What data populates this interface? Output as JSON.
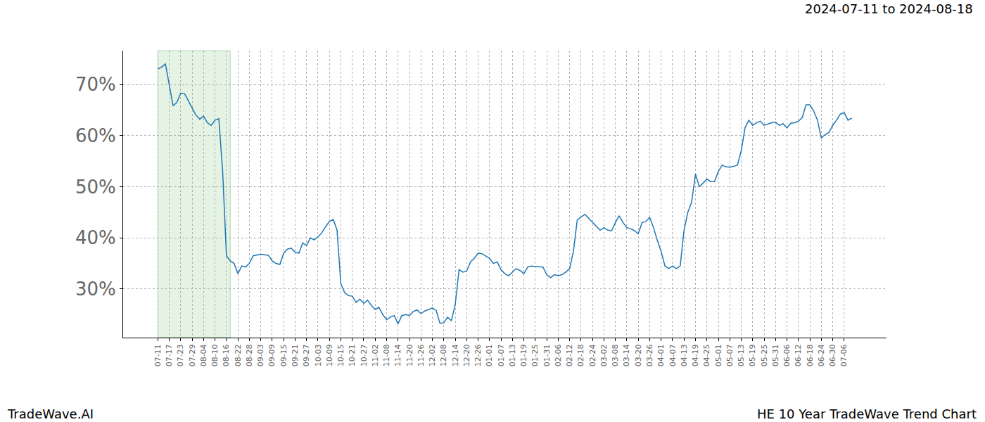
{
  "chart_data": {
    "type": "line",
    "title": "HE 10 Year TradeWave Trend Chart",
    "subtitle": "2024-07-11 to 2024-08-18",
    "caption": "TradeWave.AI",
    "highlight": {
      "start": "2024-07-11",
      "end": "2024-08-18"
    },
    "categories": [
      "07-11",
      null,
      null,
      "07-17",
      null,
      null,
      "07-23",
      null,
      null,
      "07-29",
      null,
      null,
      "08-04",
      null,
      null,
      "08-10",
      null,
      null,
      "08-16",
      null,
      null,
      "08-22",
      null,
      null,
      "08-28",
      null,
      null,
      "09-03",
      null,
      null,
      "09-09",
      null,
      null,
      "09-15",
      null,
      null,
      "09-21",
      null,
      null,
      "09-27",
      null,
      null,
      "10-03",
      null,
      null,
      "10-09",
      null,
      null,
      "10-15",
      null,
      null,
      "10-21",
      null,
      null,
      "10-27",
      null,
      null,
      "11-02",
      null,
      null,
      "11-08",
      null,
      null,
      "11-14",
      null,
      null,
      "11-20",
      null,
      null,
      "11-26",
      null,
      null,
      "12-02",
      null,
      null,
      "12-08",
      null,
      null,
      "12-14",
      null,
      null,
      "12-20",
      null,
      null,
      "12-26",
      null,
      null,
      "01-01",
      null,
      null,
      "01-07",
      null,
      null,
      "01-13",
      null,
      null,
      "01-19",
      null,
      null,
      "01-25",
      null,
      null,
      "01-31",
      null,
      null,
      "02-06",
      null,
      null,
      "02-12",
      null,
      null,
      "02-18",
      null,
      null,
      "02-24",
      null,
      null,
      "03-02",
      null,
      null,
      "03-08",
      null,
      null,
      "03-14",
      null,
      null,
      "03-20",
      null,
      null,
      "03-26",
      null,
      null,
      "04-01",
      null,
      null,
      "04-07",
      null,
      null,
      "04-13",
      null,
      null,
      "04-19",
      null,
      null,
      "04-25",
      null,
      null,
      "05-01",
      null,
      null,
      "05-07",
      null,
      null,
      "05-13",
      null,
      null,
      "05-19",
      null,
      null,
      "05-25",
      null,
      null,
      "05-31",
      null,
      null,
      "06-06",
      null,
      null,
      "06-12",
      null,
      null,
      "06-18",
      null,
      null,
      "06-24",
      null,
      null,
      "06-30",
      null,
      null,
      "07-06",
      null,
      null
    ],
    "values": [
      73.0,
      73.4,
      74.0,
      70.0,
      65.8,
      66.5,
      68.3,
      68.2,
      66.8,
      65.5,
      64.0,
      63.2,
      63.8,
      62.5,
      62.0,
      63.0,
      63.3,
      53.0,
      36.5,
      35.5,
      35.0,
      33.0,
      34.5,
      34.3,
      35.0,
      36.5,
      36.6,
      36.8,
      36.7,
      36.6,
      35.5,
      35.0,
      34.8,
      37.0,
      37.8,
      38.0,
      37.2,
      37.0,
      39.0,
      38.5,
      40.0,
      39.6,
      40.2,
      41.0,
      42.2,
      43.2,
      43.6,
      41.5,
      31.0,
      29.3,
      28.7,
      28.6,
      27.4,
      28.0,
      27.2,
      27.8,
      26.8,
      26.0,
      26.4,
      25.0,
      24.0,
      24.5,
      24.8,
      23.2,
      24.8,
      25.0,
      24.8,
      25.6,
      25.9,
      25.2,
      25.7,
      26.0,
      26.3,
      25.8,
      23.3,
      23.4,
      24.5,
      23.8,
      27.0,
      33.8,
      33.3,
      33.5,
      35.3,
      36.0,
      37.0,
      36.9,
      36.5,
      36.0,
      35.0,
      35.3,
      33.8,
      33.0,
      32.6,
      33.3,
      34.0,
      33.6,
      33.0,
      34.3,
      34.5,
      34.4,
      34.3,
      34.3,
      32.8,
      32.2,
      32.8,
      32.6,
      32.8,
      33.3,
      34.0,
      37.4,
      43.5,
      44.0,
      44.6,
      43.8,
      43.0,
      42.2,
      41.5,
      42.0,
      41.5,
      41.4,
      43.0,
      44.3,
      43.0,
      42.0,
      41.8,
      41.4,
      40.8,
      43.0,
      43.2,
      44.0,
      42.0,
      39.5,
      37.3,
      34.5,
      34.0,
      34.5,
      34.0,
      34.5,
      41.5,
      45.0,
      47.0,
      52.5,
      50.0,
      50.7,
      51.5,
      51.0,
      51.0,
      53.0,
      54.2,
      53.9,
      53.8,
      54.0,
      54.2,
      57.0,
      61.5,
      63.0,
      62.0,
      62.5,
      62.8,
      62.0,
      62.3,
      62.5,
      62.6,
      62.0,
      62.3,
      61.5,
      62.4,
      62.5,
      62.8,
      63.5,
      66.0,
      66.0,
      64.8,
      63.0,
      59.5,
      60.2,
      60.6,
      62.0,
      63.0,
      64.2,
      64.5,
      63.0,
      63.4
    ],
    "color": "#1f77b4",
    "ylim": [
      20.5,
      76.6
    ],
    "yticks": [
      {
        "value": 30,
        "label": "30%"
      },
      {
        "value": 40,
        "label": "40%"
      },
      {
        "value": 50,
        "label": "50%"
      },
      {
        "value": 60,
        "label": "60%"
      },
      {
        "value": 70,
        "label": "70%"
      }
    ],
    "grid": true
  }
}
